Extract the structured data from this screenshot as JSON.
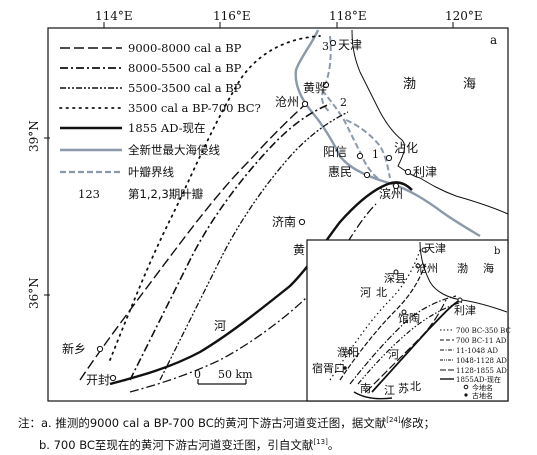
{
  "axes": {
    "lon_ticks": [
      "114°E",
      "116°E",
      "118°E",
      "120°E"
    ],
    "lat_ticks": [
      "39°N",
      "36°N"
    ]
  },
  "panel_a": {
    "label": "a",
    "legend": [
      {
        "style": "long-dash",
        "label": "9000-8000 cal a BP"
      },
      {
        "style": "dash-dot",
        "label": "8000-5500 cal a BP"
      },
      {
        "style": "dash-dot-dot",
        "label": "5500-3500 cal a BP"
      },
      {
        "style": "dotted",
        "label": "3500 cal a BP-700 BC?"
      },
      {
        "style": "solid-thick",
        "label": "1855 AD-现在"
      },
      {
        "style": "gray-solid",
        "label": "全新世最大海侵线"
      },
      {
        "style": "gray-dash",
        "label": "叶瓣界线"
      },
      {
        "style": "numbers",
        "symbol": "123",
        "label": "第1,2,3期叶瓣"
      }
    ],
    "places": {
      "tianjin": "天津",
      "cangzhou": "沧州",
      "huanghua": "黄骅",
      "bohai_1": "渤",
      "bohai_2": "海",
      "zhanhua": "沾化",
      "yangxin": "阳信",
      "huimin": "惠民",
      "lijin": "利津",
      "binzhou": "滨州",
      "jinan": "济南",
      "xinxiang": "新乡",
      "kaifeng": "开封",
      "river_1": "黄",
      "river_2": "河"
    },
    "lobes": [
      "1",
      "2",
      "3"
    ],
    "scale": {
      "zero": "0",
      "label": "50 km"
    }
  },
  "panel_b": {
    "label": "b",
    "places": {
      "tianjin": "天津",
      "cangzhou": "沧州",
      "bohai_1": "渤",
      "bohai_2": "海",
      "shenxian": "深县",
      "hebei_1": "河",
      "hebei_2": "北",
      "guantao": "馆陶",
      "lijin": "利津",
      "puyang": "濮阳",
      "suxuguo": "宿胥口",
      "he": "河",
      "nan": "南",
      "river_jiang": "江",
      "river_su": "苏",
      "river_bei": "北"
    },
    "legend": [
      {
        "style": "dotted",
        "label": "700 BC-350 BC"
      },
      {
        "style": "dash",
        "label": "700 BC-11 AD"
      },
      {
        "style": "dash-dot",
        "label": "11-1048 AD"
      },
      {
        "style": "dash-dot-dot",
        "label": "1048-1128 AD"
      },
      {
        "style": "long-dash",
        "label": "1128-1855 AD"
      },
      {
        "style": "solid",
        "label": "1855AD-现在"
      },
      {
        "style": "circle",
        "label": "今地名"
      },
      {
        "style": "dot",
        "label": "古地名"
      }
    ]
  },
  "caption": {
    "line1": "注：a. 推测的9000 cal a BP-700 BC的黄河下游古河道变迁图，据文献",
    "ref1": "[24]",
    "line1_end": "修改；",
    "line2": "b. 700 BC至现在的黄河下游古河道变迁图，引自文献",
    "ref2": "[13]",
    "line2_end": "。"
  }
}
